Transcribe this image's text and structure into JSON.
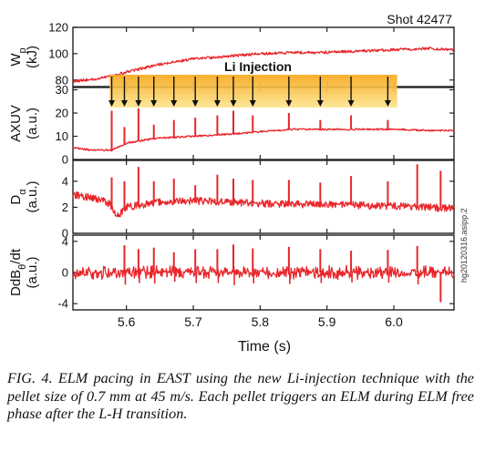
{
  "shot_label": "Shot 42477",
  "injection_label": "Li Injection",
  "side_label": "hg20120316.asipp.2",
  "caption": "FIG. 4. ELM pacing in EAST using the new Li-injection technique with the pellet size of 0.7 mm at 45 m/s. Each pellet triggers an ELM during ELM free phase after the L-H transition.",
  "colors": {
    "trace": "#e8262b",
    "band_top": "#f6a81c",
    "band_bottom": "#fde58f"
  },
  "chart_data": {
    "type": "line",
    "xlabel": "Time (s)",
    "xlim": [
      5.52,
      6.09
    ],
    "x_ticks": [
      5.6,
      5.7,
      5.8,
      5.9,
      6.0
    ],
    "x_tick_labels": [
      "5.6",
      "5.7",
      "5.8",
      "5.9",
      "6.0"
    ],
    "injection_window": [
      5.575,
      6.005
    ],
    "pellet_times": [
      5.578,
      5.597,
      5.618,
      5.641,
      5.671,
      5.703,
      5.736,
      5.76,
      5.789,
      5.843,
      5.89,
      5.936,
      5.991
    ],
    "panels": [
      {
        "name": "Wp",
        "ylabel_main": "W",
        "ylabel_sub": "p",
        "ylabel_unit": "(kJ)",
        "ylim": [
          75,
          120
        ],
        "y_ticks": [
          80,
          100,
          120
        ],
        "y_tick_labels": [
          "80",
          "100",
          "120"
        ],
        "baseline": {
          "x": [
            5.52,
            5.56,
            5.6,
            5.65,
            5.7,
            5.75,
            5.8,
            5.85,
            5.9,
            5.95,
            6.0,
            6.05,
            6.09
          ],
          "y": [
            79,
            81,
            86,
            92,
            96,
            98,
            100,
            101,
            101,
            102,
            103,
            104,
            103
          ]
        }
      },
      {
        "name": "AXUV",
        "ylabel_main": "AXUV",
        "ylabel_unit": "(a.u.)",
        "ylim": [
          0,
          31
        ],
        "y_ticks": [
          0,
          10,
          20,
          30
        ],
        "y_tick_labels": [
          "0",
          "10",
          "20",
          "30"
        ],
        "baseline": {
          "x": [
            5.52,
            5.55,
            5.578,
            5.6,
            5.64,
            5.7,
            5.76,
            5.8,
            5.85,
            5.9,
            5.95,
            6.0,
            6.05,
            6.09
          ],
          "y": [
            5,
            4,
            4,
            7,
            9,
            10,
            11,
            12,
            13,
            13,
            13,
            13,
            12.5,
            12.5
          ]
        },
        "spikes": [
          {
            "t": 5.578,
            "v": 21
          },
          {
            "t": 5.597,
            "v": 14
          },
          {
            "t": 5.618,
            "v": 22
          },
          {
            "t": 5.641,
            "v": 15
          },
          {
            "t": 5.671,
            "v": 17
          },
          {
            "t": 5.703,
            "v": 18
          },
          {
            "t": 5.736,
            "v": 19
          },
          {
            "t": 5.76,
            "v": 21
          },
          {
            "t": 5.789,
            "v": 19
          },
          {
            "t": 5.843,
            "v": 20
          },
          {
            "t": 5.89,
            "v": 17
          },
          {
            "t": 5.936,
            "v": 19
          },
          {
            "t": 5.991,
            "v": 17
          }
        ]
      },
      {
        "name": "Dalpha",
        "ylabel_main": "D",
        "ylabel_sub": "α",
        "ylabel_unit": "(a.u.)",
        "ylim": [
          0,
          5.6
        ],
        "y_ticks": [
          0,
          2,
          4
        ],
        "y_tick_labels": [
          "0",
          "2",
          "4"
        ],
        "baseline": {
          "x": [
            5.52,
            5.56,
            5.575,
            5.585,
            5.6,
            5.65,
            5.7,
            5.8,
            5.9,
            6.0,
            6.05,
            6.09
          ],
          "y": [
            3.0,
            2.6,
            2.3,
            1.2,
            2.0,
            2.4,
            2.5,
            2.3,
            2.2,
            2.1,
            2.0,
            1.9
          ]
        },
        "spikes": [
          {
            "t": 5.578,
            "v": 4.3
          },
          {
            "t": 5.597,
            "v": 4.0
          },
          {
            "t": 5.618,
            "v": 5.1
          },
          {
            "t": 5.641,
            "v": 4.0
          },
          {
            "t": 5.671,
            "v": 4.2
          },
          {
            "t": 5.703,
            "v": 3.7
          },
          {
            "t": 5.736,
            "v": 4.5
          },
          {
            "t": 5.76,
            "v": 4.2
          },
          {
            "t": 5.789,
            "v": 4.1
          },
          {
            "t": 5.843,
            "v": 4.1
          },
          {
            "t": 5.89,
            "v": 3.9
          },
          {
            "t": 5.936,
            "v": 4.4
          },
          {
            "t": 5.991,
            "v": 4.0
          },
          {
            "t": 6.035,
            "v": 5.3
          },
          {
            "t": 6.07,
            "v": 4.8
          }
        ]
      },
      {
        "name": "DdBtheta",
        "ylabel_main": "DdB",
        "ylabel_sub": "θ",
        "ylabel_tail": "/dt",
        "ylabel_unit": "(a.u.)",
        "ylim": [
          -4.8,
          4.8
        ],
        "y_ticks": [
          -4,
          0,
          4
        ],
        "y_tick_labels": [
          "-4",
          "0",
          "4"
        ],
        "baseline": {
          "x": [
            5.52,
            6.09
          ],
          "y": [
            0,
            0
          ]
        },
        "spikes": [
          {
            "t": 5.597,
            "v": 3.5
          },
          {
            "t": 5.618,
            "v": 3.0
          },
          {
            "t": 5.641,
            "v": 3.2
          },
          {
            "t": 5.671,
            "v": 2.6
          },
          {
            "t": 5.703,
            "v": 3.0
          },
          {
            "t": 5.736,
            "v": 3.0
          },
          {
            "t": 5.76,
            "v": 3.6
          },
          {
            "t": 5.789,
            "v": 3.1
          },
          {
            "t": 5.843,
            "v": 3.3
          },
          {
            "t": 5.89,
            "v": 3.0
          },
          {
            "t": 5.936,
            "v": 2.8
          },
          {
            "t": 5.991,
            "v": 2.9
          },
          {
            "t": 6.035,
            "v": 3.4
          },
          {
            "t": 6.07,
            "v": -3.8
          }
        ]
      }
    ]
  }
}
